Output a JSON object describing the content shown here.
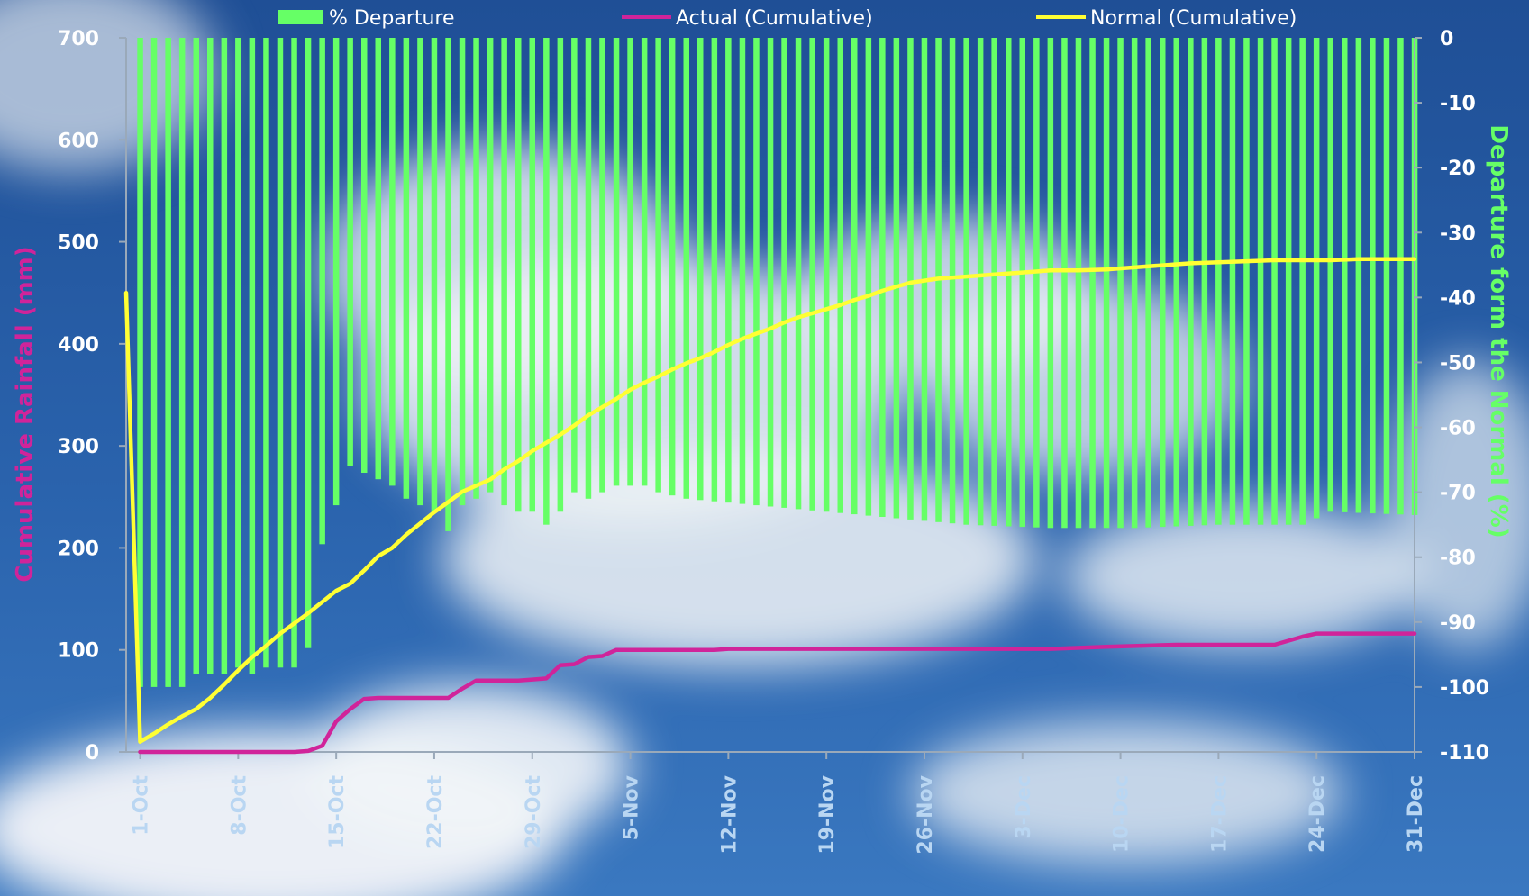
{
  "chart_data": {
    "type": "bar+line",
    "title": "",
    "ylabel": "Cumulative Rainfall (mm)",
    "y2label": "Departure form the Normal (%)",
    "ylim": [
      0,
      700
    ],
    "y2lim": [
      -110,
      0
    ],
    "yticks": [
      "0",
      "100",
      "200",
      "300",
      "400",
      "500",
      "600",
      "700"
    ],
    "y2ticks": [
      "0",
      "-10",
      "-20",
      "-30",
      "-40",
      "-50",
      "-60",
      "-70",
      "-80",
      "-90",
      "-100",
      "-110"
    ],
    "xticks": [
      "1-Oct",
      "8-Oct",
      "15-Oct",
      "22-Oct",
      "29-Oct",
      "5-Nov",
      "12-Nov",
      "19-Nov",
      "26-Nov",
      "3-Dec",
      "10-Dec",
      "17-Dec",
      "24-Dec",
      "31-Dec"
    ],
    "legend": {
      "position": "top",
      "items": [
        {
          "label": "% Departure",
          "color": "#66ff66",
          "kind": "bar"
        },
        {
          "label": "Actual (Cumulative)",
          "color": "#d0249a",
          "kind": "line"
        },
        {
          "label": "Normal (Cumulative)",
          "color": "#ffff33",
          "kind": "line"
        }
      ]
    },
    "colors": {
      "departure": "#66ff66",
      "actual": "#d0249a",
      "normal": "#ffff33"
    },
    "series": [
      {
        "name": "% Departure",
        "axis": "right",
        "kind": "bar",
        "anchors": [
          [
            1,
            -100
          ],
          [
            2,
            -100
          ],
          [
            3,
            -100
          ],
          [
            4,
            -100
          ],
          [
            5,
            -98
          ],
          [
            6,
            -98
          ],
          [
            7,
            -98
          ],
          [
            8,
            -97
          ],
          [
            9,
            -98
          ],
          [
            10,
            -97
          ],
          [
            11,
            -97
          ],
          [
            12,
            -97
          ],
          [
            13,
            -94
          ],
          [
            14,
            -78
          ],
          [
            15,
            -72
          ],
          [
            16,
            -66
          ],
          [
            17,
            -67
          ],
          [
            18,
            -68
          ],
          [
            19,
            -69
          ],
          [
            20,
            -71
          ],
          [
            21,
            -72
          ],
          [
            22,
            -73
          ],
          [
            23,
            -76
          ],
          [
            24,
            -72
          ],
          [
            25,
            -71
          ],
          [
            26,
            -70
          ],
          [
            27,
            -72
          ],
          [
            28,
            -73
          ],
          [
            29,
            -73
          ],
          [
            30,
            -75
          ],
          [
            31,
            -73
          ],
          [
            32,
            -70
          ],
          [
            33,
            -71
          ],
          [
            34,
            -70
          ],
          [
            35,
            -69
          ],
          [
            36,
            -69
          ],
          [
            37,
            -69
          ],
          [
            38,
            -70
          ],
          [
            40,
            -71
          ],
          [
            45,
            -72
          ],
          [
            50,
            -73
          ],
          [
            55,
            -74
          ],
          [
            60,
            -75
          ],
          [
            66,
            -75.5
          ],
          [
            72,
            -75.5
          ],
          [
            78,
            -75
          ],
          [
            84,
            -75
          ],
          [
            85,
            -74
          ],
          [
            86,
            -73
          ],
          [
            92,
            -73.5
          ]
        ]
      },
      {
        "name": "Actual (Cumulative)",
        "axis": "left",
        "kind": "line",
        "points": [
          [
            1,
            0
          ],
          [
            12,
            0
          ],
          [
            13,
            1
          ],
          [
            14,
            6
          ],
          [
            15,
            30
          ],
          [
            16,
            42
          ],
          [
            17,
            52
          ],
          [
            18,
            53
          ],
          [
            23,
            53
          ],
          [
            24,
            62
          ],
          [
            25,
            70
          ],
          [
            28,
            70
          ],
          [
            29,
            71
          ],
          [
            30,
            72
          ],
          [
            31,
            85
          ],
          [
            32,
            86
          ],
          [
            33,
            93
          ],
          [
            34,
            94
          ],
          [
            35,
            100
          ],
          [
            42,
            100
          ],
          [
            43,
            101
          ],
          [
            66,
            101
          ],
          [
            70,
            103
          ],
          [
            75,
            105
          ],
          [
            82,
            105
          ],
          [
            84,
            113
          ],
          [
            85,
            116
          ],
          [
            92,
            116
          ]
        ]
      },
      {
        "name": "Normal (Cumulative)",
        "axis": "left",
        "kind": "line",
        "points": [
          [
            0,
            450
          ],
          [
            1,
            10
          ],
          [
            2,
            18
          ],
          [
            3,
            27
          ],
          [
            4,
            35
          ],
          [
            5,
            42
          ],
          [
            6,
            53
          ],
          [
            7,
            66
          ],
          [
            8,
            80
          ],
          [
            9,
            93
          ],
          [
            10,
            104
          ],
          [
            11,
            116
          ],
          [
            12,
            126
          ],
          [
            13,
            136
          ],
          [
            14,
            147
          ],
          [
            15,
            158
          ],
          [
            16,
            165
          ],
          [
            17,
            178
          ],
          [
            18,
            192
          ],
          [
            19,
            200
          ],
          [
            20,
            213
          ],
          [
            21,
            224
          ],
          [
            22,
            235
          ],
          [
            23,
            245
          ],
          [
            24,
            255
          ],
          [
            25,
            261
          ],
          [
            26,
            267
          ],
          [
            27,
            277
          ],
          [
            28,
            285
          ],
          [
            29,
            295
          ],
          [
            30,
            303
          ],
          [
            31,
            311
          ],
          [
            32,
            320
          ],
          [
            33,
            330
          ],
          [
            34,
            338
          ],
          [
            35,
            346
          ],
          [
            36,
            355
          ],
          [
            37,
            362
          ],
          [
            38,
            368
          ],
          [
            39,
            375
          ],
          [
            40,
            381
          ],
          [
            41,
            386
          ],
          [
            42,
            392
          ],
          [
            43,
            399
          ],
          [
            44,
            405
          ],
          [
            45,
            410
          ],
          [
            46,
            415
          ],
          [
            47,
            421
          ],
          [
            48,
            426
          ],
          [
            49,
            430
          ],
          [
            50,
            434
          ],
          [
            51,
            438
          ],
          [
            52,
            443
          ],
          [
            53,
            447
          ],
          [
            54,
            452
          ],
          [
            55,
            456
          ],
          [
            56,
            460
          ],
          [
            57,
            462
          ],
          [
            58,
            464
          ],
          [
            59,
            465
          ],
          [
            60,
            466
          ],
          [
            62,
            468
          ],
          [
            64,
            470
          ],
          [
            66,
            472
          ],
          [
            68,
            472
          ],
          [
            70,
            473
          ],
          [
            72,
            475
          ],
          [
            74,
            477
          ],
          [
            76,
            479
          ],
          [
            78,
            480
          ],
          [
            80,
            481
          ],
          [
            82,
            482
          ],
          [
            84,
            482
          ],
          [
            86,
            482
          ],
          [
            88,
            483
          ],
          [
            90,
            483
          ],
          [
            92,
            483
          ]
        ]
      }
    ]
  }
}
